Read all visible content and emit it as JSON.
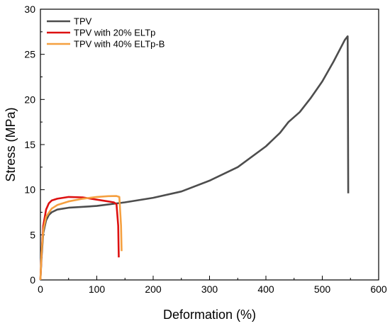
{
  "chart_data": {
    "type": "line",
    "title": "",
    "xlabel": "Deformation (%)",
    "ylabel": "Stress (MPa)",
    "xlim": [
      0,
      600
    ],
    "ylim": [
      0,
      30
    ],
    "x_ticks": [
      0,
      100,
      200,
      300,
      400,
      500,
      600
    ],
    "y_ticks": [
      0,
      5,
      10,
      15,
      20,
      25,
      30
    ],
    "grid": false,
    "legend_position": "top-left",
    "series": [
      {
        "name": "TPV",
        "color": "#4d4d4d",
        "points": [
          [
            0,
            0
          ],
          [
            2,
            2.5
          ],
          [
            5,
            5.2
          ],
          [
            10,
            6.6
          ],
          [
            15,
            7.2
          ],
          [
            20,
            7.5
          ],
          [
            30,
            7.8
          ],
          [
            50,
            8.0
          ],
          [
            100,
            8.2
          ],
          [
            150,
            8.6
          ],
          [
            200,
            9.1
          ],
          [
            250,
            9.8
          ],
          [
            300,
            11.0
          ],
          [
            350,
            12.5
          ],
          [
            400,
            14.8
          ],
          [
            425,
            16.3
          ],
          [
            440,
            17.5
          ],
          [
            460,
            18.6
          ],
          [
            480,
            20.2
          ],
          [
            500,
            22.0
          ],
          [
            520,
            24.2
          ],
          [
            540,
            26.6
          ],
          [
            545,
            27.0
          ],
          [
            546,
            9.6
          ]
        ]
      },
      {
        "name": "TPV with 20% ELTp",
        "color": "#dd1111",
        "points": [
          [
            0,
            0
          ],
          [
            2,
            3.0
          ],
          [
            5,
            6.0
          ],
          [
            10,
            7.8
          ],
          [
            15,
            8.5
          ],
          [
            20,
            8.8
          ],
          [
            30,
            9.0
          ],
          [
            50,
            9.2
          ],
          [
            75,
            9.15
          ],
          [
            100,
            8.9
          ],
          [
            120,
            8.7
          ],
          [
            130,
            8.6
          ],
          [
            135,
            8.4
          ],
          [
            138,
            6.0
          ],
          [
            139,
            2.5
          ]
        ]
      },
      {
        "name": "TPV with 40% ELTp-B",
        "color": "#f5a040",
        "points": [
          [
            0,
            0
          ],
          [
            2,
            3.0
          ],
          [
            5,
            5.5
          ],
          [
            10,
            7.0
          ],
          [
            20,
            7.9
          ],
          [
            30,
            8.3
          ],
          [
            50,
            8.7
          ],
          [
            75,
            9.0
          ],
          [
            100,
            9.2
          ],
          [
            120,
            9.28
          ],
          [
            135,
            9.3
          ],
          [
            140,
            9.2
          ],
          [
            143,
            6.0
          ],
          [
            144,
            3.2
          ]
        ]
      }
    ]
  }
}
